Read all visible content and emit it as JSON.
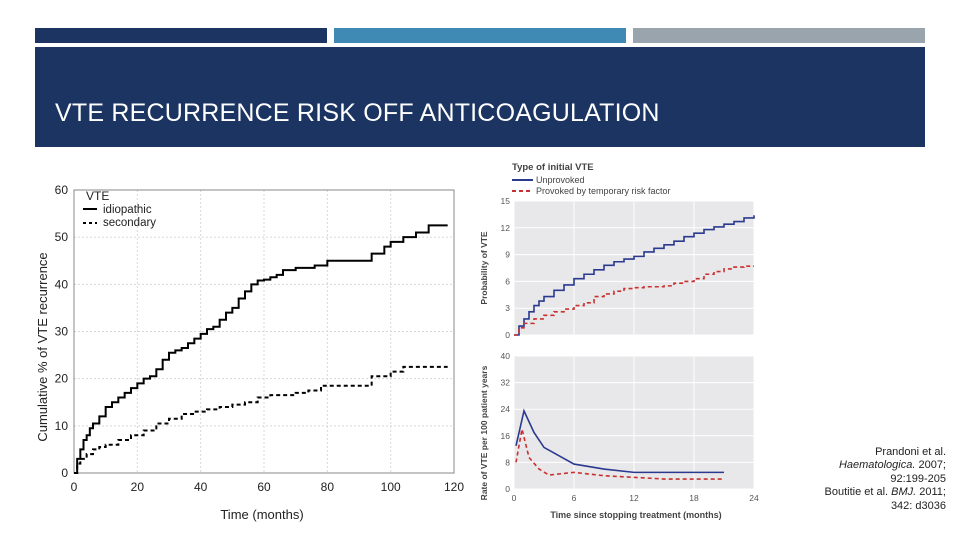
{
  "slide": {
    "title": "VTE RECURRENCE RISK OFF ANTICOAGULATION",
    "header_colors": [
      "#1c3461",
      "#3e8ab5",
      "#9aa4ad"
    ]
  },
  "citation": {
    "line1": "Prandoni et al.",
    "journal1": "Haematologica.",
    "line2_rest": " 2007;",
    "line3": "92:199-205",
    "line4_prefix": "Boutitie et al. ",
    "journal2": "BMJ.",
    "line4_rest": " 2011;",
    "line5": "342: d3036"
  },
  "chart_data": [
    {
      "type": "line",
      "xlabel": "Time (months)",
      "ylabel": "Cumulative % of VTE recurrence",
      "xlim": [
        0,
        120
      ],
      "ylim": [
        0,
        60
      ],
      "xticks": [
        0,
        20,
        40,
        60,
        80,
        100,
        120
      ],
      "yticks": [
        0,
        10,
        20,
        30,
        40,
        50,
        60
      ],
      "grid": true,
      "legend": {
        "title": "VTE",
        "position": "top-left"
      },
      "series": [
        {
          "name": "idiopathic",
          "style": "solid",
          "color": "#000000",
          "x": [
            0,
            1,
            2,
            3,
            4,
            5,
            6,
            8,
            10,
            12,
            14,
            16,
            18,
            20,
            22,
            24,
            26,
            28,
            30,
            32,
            34,
            36,
            38,
            40,
            42,
            44,
            46,
            48,
            50,
            52,
            54,
            56,
            58,
            60,
            62,
            64,
            66,
            70,
            76,
            80,
            88,
            94,
            98,
            100,
            104,
            108,
            112,
            118
          ],
          "y": [
            0,
            3,
            5,
            7,
            8,
            9.5,
            10.5,
            12,
            14,
            15,
            16,
            17,
            18,
            19,
            20,
            20.5,
            22,
            24,
            25.5,
            26,
            26.5,
            27.5,
            28.5,
            29.5,
            30.5,
            31,
            32.5,
            34,
            35,
            37,
            38.5,
            40,
            40.8,
            41,
            41.5,
            42,
            43,
            43.5,
            44,
            45,
            45,
            46.5,
            48,
            49,
            50,
            51,
            52.5,
            52.5
          ]
        },
        {
          "name": "secondary",
          "style": "dashed",
          "color": "#000000",
          "x": [
            0,
            1,
            2,
            4,
            6,
            8,
            10,
            14,
            18,
            22,
            26,
            30,
            34,
            38,
            42,
            46,
            50,
            54,
            58,
            62,
            66,
            70,
            74,
            78,
            84,
            90,
            94,
            98,
            100,
            104,
            118
          ],
          "y": [
            0,
            2,
            3,
            4,
            5,
            5.5,
            6,
            7,
            8,
            9,
            10.5,
            11.5,
            12.5,
            13,
            13.5,
            14,
            14.5,
            15,
            16,
            16.5,
            16.5,
            17,
            17.5,
            18.5,
            18.5,
            18.5,
            20.5,
            20.5,
            21.5,
            22.5,
            22.5
          ]
        }
      ]
    },
    {
      "type": "line",
      "legend": {
        "title": "Type of initial VTE",
        "position": "top-left"
      },
      "xlabel": "Time since stopping treatment (months)",
      "xlim": [
        0,
        24
      ],
      "xticks": [
        0,
        6,
        12,
        18,
        24
      ],
      "panels": [
        {
          "ylabel": "Probability of VTE",
          "ylim": [
            0,
            15
          ],
          "yticks": [
            0,
            3,
            6,
            9,
            12,
            15
          ],
          "series": [
            {
              "name": "Unprovoked",
              "style": "solid",
              "color": "#2b3a8f",
              "x": [
                0,
                0.5,
                1,
                1.5,
                2,
                2.5,
                3,
                4,
                5,
                6,
                7,
                8,
                9,
                10,
                11,
                12,
                13,
                14,
                15,
                16,
                17,
                18,
                19,
                20,
                21,
                22,
                23,
                24
              ],
              "y": [
                0,
                1,
                1.8,
                2.6,
                3.3,
                3.8,
                4.3,
                5,
                5.6,
                6.3,
                6.8,
                7.3,
                7.8,
                8.2,
                8.5,
                8.8,
                9.3,
                9.7,
                10.1,
                10.5,
                11,
                11.4,
                11.8,
                12.1,
                12.4,
                12.7,
                13.1,
                13.4
              ]
            },
            {
              "name": "Provoked by temporary risk factor",
              "style": "dashed",
              "color": "#c8312f",
              "x": [
                0,
                0.5,
                1,
                2,
                3,
                4,
                5,
                6,
                7,
                8,
                9,
                10,
                11,
                12,
                13,
                14,
                15,
                16,
                17,
                18,
                19,
                20,
                21,
                22,
                23,
                24
              ],
              "y": [
                0,
                0.8,
                1.3,
                1.8,
                2.2,
                2.6,
                2.9,
                3.3,
                3.6,
                4.3,
                4.6,
                4.9,
                5.2,
                5.3,
                5.4,
                5.4,
                5.5,
                5.8,
                6,
                6.3,
                6.8,
                7.1,
                7.4,
                7.6,
                7.7,
                7.7
              ]
            }
          ]
        },
        {
          "ylabel": "Rate of VTE per 100 patient years",
          "ylim": [
            0,
            40
          ],
          "yticks": [
            0,
            8,
            16,
            24,
            32,
            40
          ],
          "series": [
            {
              "name": "Unprovoked",
              "style": "solid",
              "color": "#2b3a8f",
              "x": [
                0.2,
                1,
                2,
                3,
                6,
                9,
                12,
                15,
                18,
                21
              ],
              "y": [
                13,
                23.5,
                17,
                12.5,
                7.5,
                6,
                5,
                5,
                5,
                5
              ]
            },
            {
              "name": "Provoked by temporary risk factor",
              "style": "dashed",
              "color": "#c8312f",
              "x": [
                0.2,
                0.8,
                1.5,
                2.5,
                3.5,
                6,
                9,
                12,
                15,
                18,
                21
              ],
              "y": [
                8,
                18,
                9.5,
                6,
                4.2,
                5,
                4,
                3.5,
                3,
                3,
                3
              ]
            }
          ]
        }
      ]
    }
  ]
}
